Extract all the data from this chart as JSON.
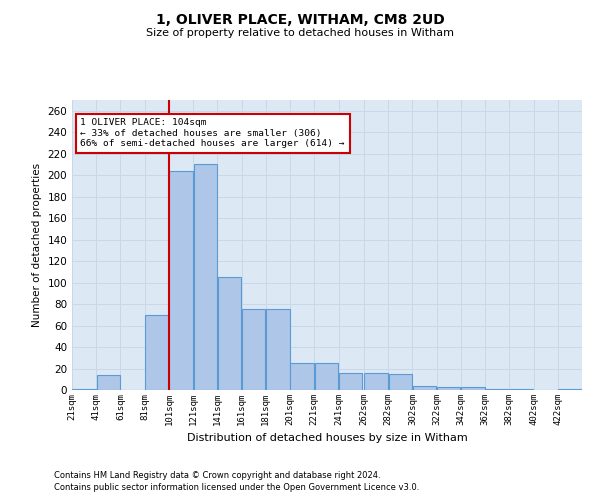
{
  "title": "1, OLIVER PLACE, WITHAM, CM8 2UD",
  "subtitle": "Size of property relative to detached houses in Witham",
  "xlabel": "Distribution of detached houses by size in Witham",
  "ylabel": "Number of detached properties",
  "footer1": "Contains HM Land Registry data © Crown copyright and database right 2024.",
  "footer2": "Contains public sector information licensed under the Open Government Licence v3.0.",
  "annotation_title": "1 OLIVER PLACE: 104sqm",
  "annotation_line1": "← 33% of detached houses are smaller (306)",
  "annotation_line2": "66% of semi-detached houses are larger (614) →",
  "property_size": 104,
  "categories": [
    "21sqm",
    "41sqm",
    "61sqm",
    "81sqm",
    "101sqm",
    "121sqm",
    "141sqm",
    "161sqm",
    "181sqm",
    "201sqm",
    "221sqm",
    "241sqm",
    "262sqm",
    "282sqm",
    "302sqm",
    "322sqm",
    "342sqm",
    "362sqm",
    "382sqm",
    "402sqm",
    "422sqm"
  ],
  "bin_starts": [
    21,
    41,
    61,
    81,
    101,
    121,
    141,
    161,
    181,
    201,
    221,
    241,
    262,
    282,
    302,
    322,
    342,
    362,
    382,
    402,
    422
  ],
  "values": [
    1,
    14,
    0,
    70,
    204,
    210,
    105,
    75,
    75,
    25,
    25,
    16,
    16,
    15,
    4,
    3,
    3,
    1,
    1,
    0,
    1
  ],
  "bar_color": "#aec6e8",
  "bar_edge_color": "#5b9bd5",
  "vline_color": "#cc0000",
  "vline_x": 101,
  "annotation_box_color": "#cc0000",
  "grid_color": "#c8d8e8",
  "bg_color": "#dce9f5",
  "ylim": [
    0,
    270
  ],
  "yticks": [
    0,
    20,
    40,
    60,
    80,
    100,
    120,
    140,
    160,
    180,
    200,
    220,
    240,
    260
  ]
}
